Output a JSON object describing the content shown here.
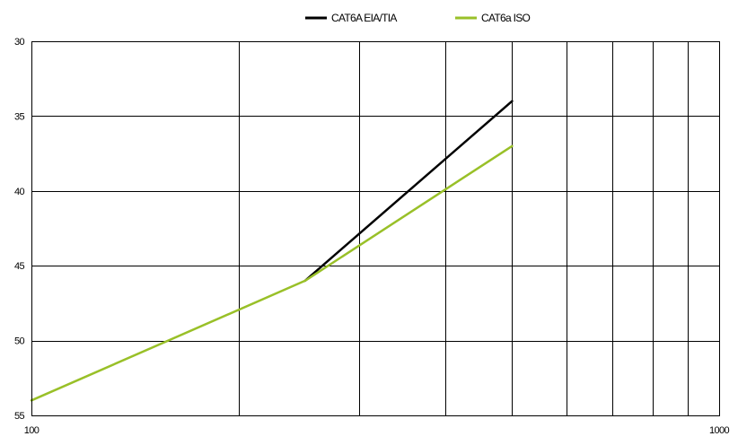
{
  "chart_data": {
    "type": "line",
    "title": "",
    "xlabel": "",
    "ylabel": "",
    "x_scale": "log",
    "xlim": [
      100,
      1000
    ],
    "ylim": [
      30,
      55
    ],
    "y_inverted": true,
    "x_gridlines": [
      100,
      200,
      300,
      400,
      500,
      600,
      700,
      800,
      900,
      1000
    ],
    "x_ticks": [
      {
        "value": 100,
        "label": "100"
      },
      {
        "value": 1000,
        "label": "1000"
      }
    ],
    "y_ticks": [
      {
        "value": 30,
        "label": "30"
      },
      {
        "value": 35,
        "label": "35"
      },
      {
        "value": 40,
        "label": "40"
      },
      {
        "value": 45,
        "label": "45"
      },
      {
        "value": 50,
        "label": "50"
      },
      {
        "value": 55,
        "label": "55"
      }
    ],
    "grid": true,
    "legend_position": "top",
    "series": [
      {
        "name": "CAT6A EIA/TIA",
        "color": "#000000",
        "points": [
          [
            250,
            46
          ],
          [
            500,
            34
          ]
        ]
      },
      {
        "name": "CAT6a ISO",
        "color": "#99c028",
        "points": [
          [
            100,
            54
          ],
          [
            250,
            46
          ],
          [
            500,
            37
          ]
        ]
      }
    ]
  }
}
